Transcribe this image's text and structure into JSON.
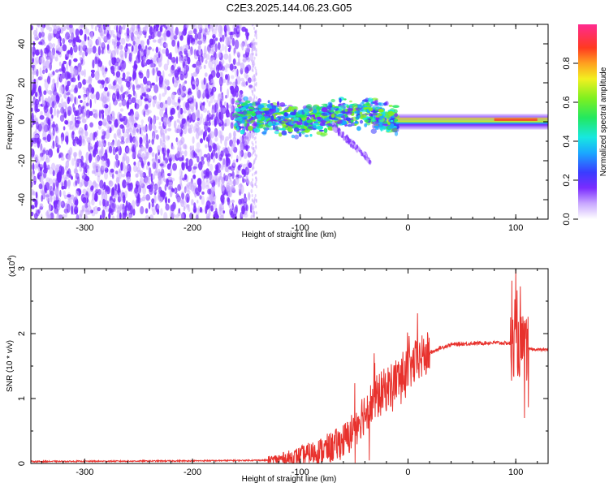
{
  "title": "C2E3.2025.144.06.23.G05",
  "colors": {
    "noise": "#7a2cff",
    "noise_light": "#c9a8ff",
    "snr_line": "#e8322d",
    "frame": "#000000"
  },
  "chart_data": [
    {
      "type": "heatmap",
      "name": "spectrogram",
      "xlabel": "Height of straight line (km)",
      "ylabel": "Frequency (Hz)",
      "xlim": [
        -350,
        130
      ],
      "ylim": [
        -50,
        50
      ],
      "x_ticks": [
        -300,
        -200,
        -100,
        0,
        100
      ],
      "y_ticks": [
        -40,
        -20,
        0,
        20,
        40
      ],
      "noise_region_x": [
        -350,
        -145
      ],
      "signal_track": [
        {
          "x": -160,
          "f": 3
        },
        {
          "x": -140,
          "f": 3
        },
        {
          "x": -120,
          "f": 2
        },
        {
          "x": -100,
          "f": 0
        },
        {
          "x": -80,
          "f": 2
        },
        {
          "x": -60,
          "f": 4
        },
        {
          "x": -40,
          "f": 5
        },
        {
          "x": -20,
          "f": 2
        },
        {
          "x": 0,
          "f": 1
        },
        {
          "x": 50,
          "f": 1
        },
        {
          "x": 100,
          "f": 1
        },
        {
          "x": 130,
          "f": 1
        }
      ],
      "colorbar": {
        "label": "Normalized spectral amplitude",
        "range": [
          0,
          1
        ],
        "ticks": [
          0.0,
          0.2,
          0.4,
          0.6,
          0.8
        ],
        "tick_labels": [
          "0.0",
          "0.2",
          "0.4",
          "0.6",
          "0.8"
        ]
      }
    },
    {
      "type": "line",
      "name": "snr",
      "xlabel": "Height of straight line (km)",
      "ylabel": "SNR (10 * v/v)",
      "y_multiplier_label": "(x10",
      "y_multiplier_exp": "4",
      "y_multiplier_close": ")",
      "xlim": [
        -350,
        130
      ],
      "ylim": [
        0,
        3
      ],
      "x_ticks": [
        -300,
        -200,
        -100,
        0,
        100
      ],
      "y_ticks": [
        0,
        1,
        2,
        3
      ],
      "series": [
        {
          "values_envelope": [
            {
              "x": -350,
              "y": 0.03
            },
            {
              "x": -200,
              "y": 0.04
            },
            {
              "x": -130,
              "y": 0.05
            },
            {
              "x": -110,
              "y": 0.08
            },
            {
              "x": -90,
              "y": 0.15
            },
            {
              "x": -70,
              "y": 0.25
            },
            {
              "x": -55,
              "y": 0.4
            },
            {
              "x": -45,
              "y": 0.7
            },
            {
              "x": -30,
              "y": 1.0
            },
            {
              "x": -20,
              "y": 1.15
            },
            {
              "x": -10,
              "y": 1.3
            },
            {
              "x": 0,
              "y": 1.45
            },
            {
              "x": 10,
              "y": 1.6
            },
            {
              "x": 20,
              "y": 1.7
            },
            {
              "x": 30,
              "y": 1.78
            },
            {
              "x": 40,
              "y": 1.83
            },
            {
              "x": 60,
              "y": 1.85
            },
            {
              "x": 80,
              "y": 1.86
            },
            {
              "x": 95,
              "y": 1.85
            },
            {
              "x": 105,
              "y": 1.8
            },
            {
              "x": 110,
              "y": 1.76
            },
            {
              "x": 130,
              "y": 1.75
            }
          ]
        }
      ]
    }
  ]
}
